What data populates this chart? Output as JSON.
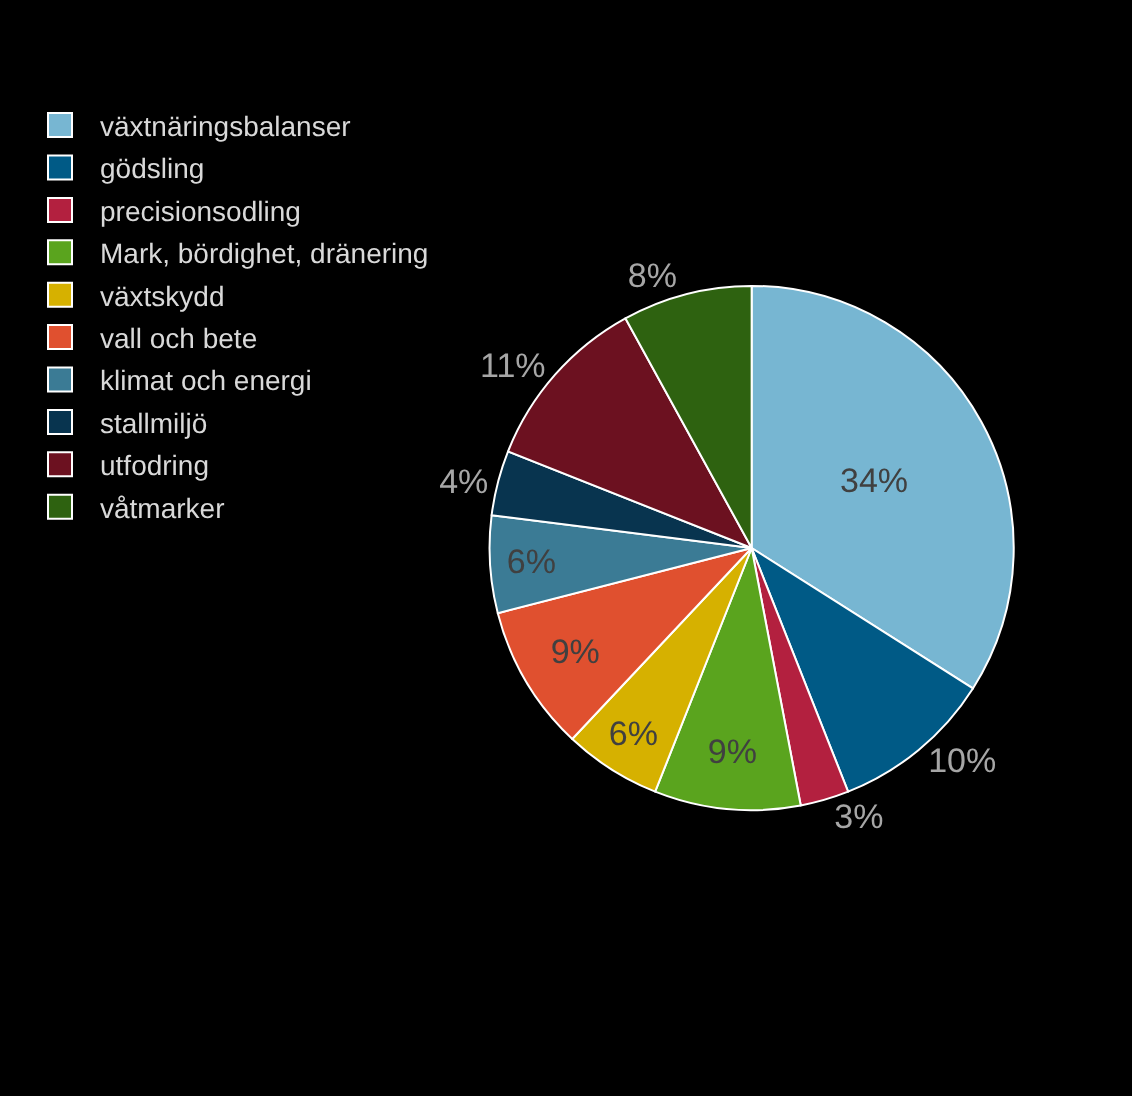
{
  "chart_data": {
    "type": "pie",
    "categories": [
      "växtnäringsbalanser",
      "gödsling",
      "precisionsodling",
      "Mark, bördighet, dränering",
      "växtskydd",
      "vall och bete",
      "klimat och energi",
      "stallmiljö",
      "utfodring",
      "våtmarker"
    ],
    "values": [
      34,
      10,
      3,
      9,
      6,
      9,
      6,
      4,
      11,
      8
    ],
    "colors": [
      "#77b6d2",
      "#005a86",
      "#b3203f",
      "#5aa41e",
      "#d6b100",
      "#e0502f",
      "#3b7b95",
      "#08344f",
      "#6c1120",
      "#2e6210"
    ],
    "value_labels": [
      "34%",
      "10%",
      "3%",
      "9%",
      "6%",
      "9%",
      "6%",
      "4%",
      "11%",
      "8%"
    ],
    "legend": "left"
  }
}
